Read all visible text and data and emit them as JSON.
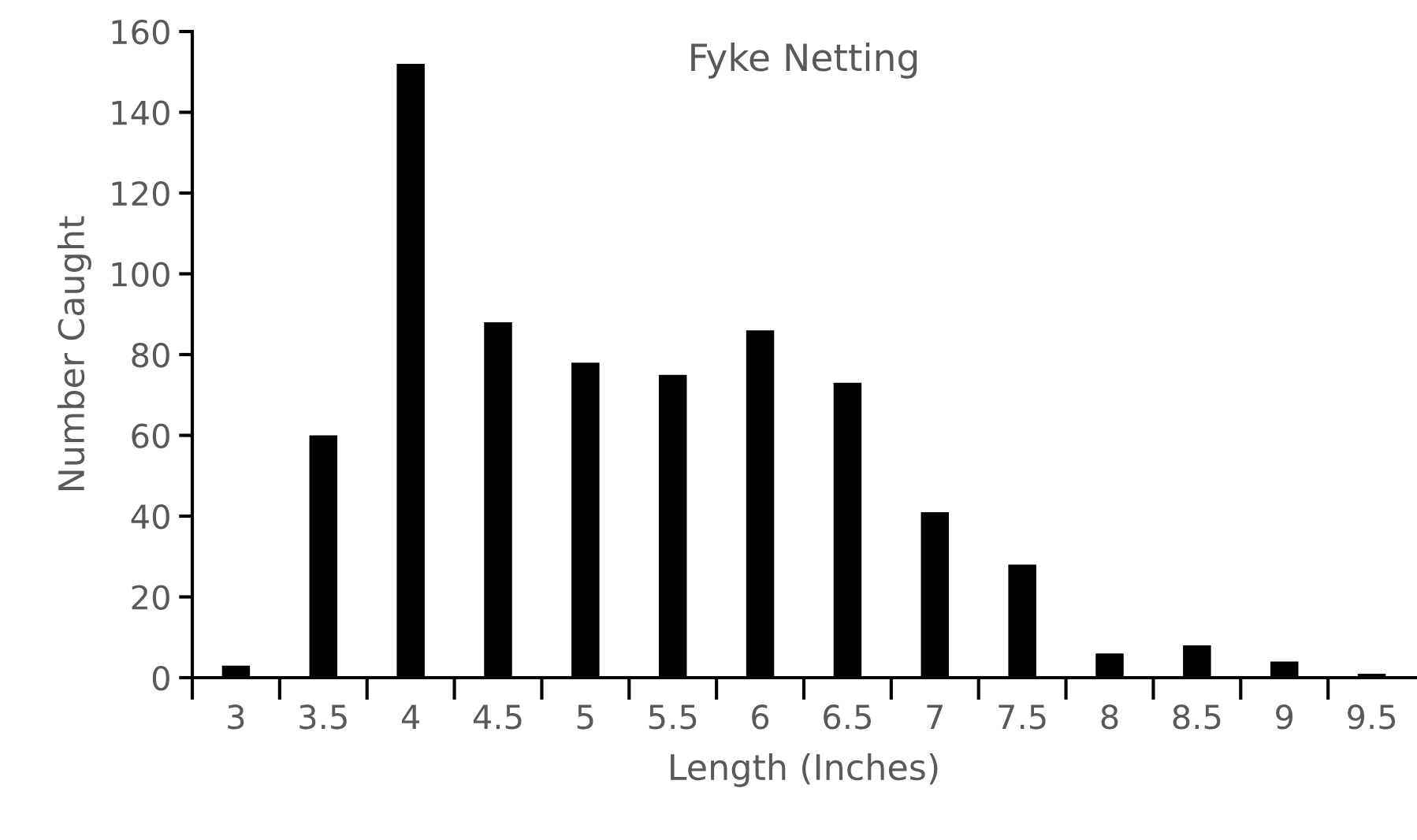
{
  "chart_data": {
    "type": "bar",
    "title": "Fyke Netting",
    "xlabel": "Length (Inches)",
    "ylabel": "Number Caught",
    "categories": [
      "3",
      "3.5",
      "4",
      "4.5",
      "5",
      "5.5",
      "6",
      "6.5",
      "7",
      "7.5",
      "8",
      "8.5",
      "9",
      "9.5"
    ],
    "values": [
      3,
      60,
      152,
      88,
      78,
      75,
      86,
      73,
      41,
      28,
      6,
      8,
      4,
      1
    ],
    "color": "#000000",
    "ylim": [
      0,
      160
    ],
    "yticks": [
      0,
      20,
      40,
      60,
      80,
      100,
      120,
      140,
      160
    ],
    "grid": false,
    "legend": false
  }
}
